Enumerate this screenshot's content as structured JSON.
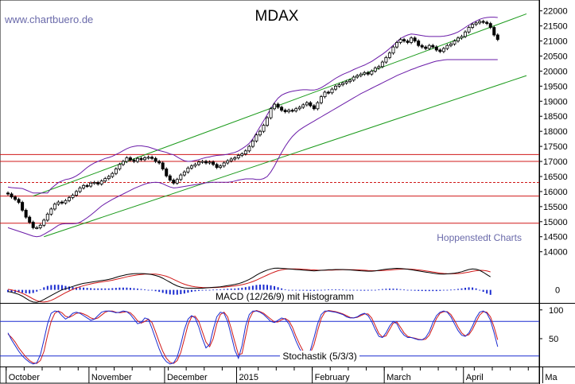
{
  "source": "www.chartbuero.de",
  "credit": "Hoppenstedt Charts",
  "colors": {
    "price": "#000000",
    "upper_band": "#6a1ba8",
    "lower_band": "#6a1ba8",
    "trend": "#1a9a1a",
    "support": "#d01818",
    "macd": "#000000",
    "signal": "#d01818",
    "histogram": "#1a2bd0",
    "stoch_fast": "#1a2bd0",
    "stoch_slow": "#d01818",
    "stoch_level": "#1a2bd0"
  },
  "chart_data": [
    {
      "type": "candlestick",
      "title": "MDAX",
      "y_ticks": [
        14000,
        14500,
        15000,
        15500,
        16000,
        16500,
        17000,
        17500,
        18000,
        18500,
        19000,
        19500,
        20000,
        20500,
        21000,
        21500,
        22000
      ],
      "ylim": [
        13780,
        22150
      ],
      "months": [
        "October",
        "November",
        "December",
        "2015",
        "February",
        "March",
        "April",
        "Ma"
      ],
      "month_starts": [
        0,
        23,
        44,
        64,
        85,
        105,
        127,
        149
      ],
      "support_levels": [
        {
          "value": 17230,
          "style": "solid"
        },
        {
          "value": 17000,
          "style": "solid"
        },
        {
          "value": 16300,
          "style": "dashed"
        },
        {
          "value": 15850,
          "style": "solid"
        },
        {
          "value": 14950,
          "style": "solid"
        }
      ],
      "trend_lines": [
        {
          "from": [
            7,
            15850
          ],
          "to": [
            144,
            21900
          ]
        },
        {
          "from": [
            10,
            14500
          ],
          "to": [
            144,
            19850
          ]
        }
      ],
      "closes": [
        15920,
        15820,
        15740,
        15640,
        15380,
        15150,
        14980,
        14800,
        14800,
        14880,
        15050,
        15250,
        15420,
        15580,
        15650,
        15620,
        15700,
        15800,
        15880,
        16000,
        16120,
        16200,
        16180,
        16280,
        16300,
        16250,
        16350,
        16430,
        16500,
        16600,
        16750,
        16900,
        17000,
        17120,
        17050,
        17000,
        17100,
        17060,
        17120,
        17140,
        17100,
        17000,
        16950,
        16750,
        16520,
        16380,
        16280,
        16400,
        16550,
        16650,
        16780,
        16850,
        16900,
        16980,
        17000,
        16950,
        16980,
        16900,
        16800,
        16850,
        16950,
        17020,
        17080,
        17120,
        17200,
        17250,
        17350,
        17500,
        17680,
        17880,
        18000,
        18200,
        18450,
        18750,
        18900,
        18800,
        18700,
        18650,
        18700,
        18680,
        18750,
        18800,
        18880,
        18950,
        18850,
        18750,
        18950,
        19150,
        19300,
        19280,
        19400,
        19500,
        19550,
        19600,
        19650,
        19700,
        19800,
        19850,
        19900,
        19950,
        19900,
        20000,
        20100,
        20150,
        20300,
        20450,
        20600,
        20800,
        20950,
        21050,
        21000,
        20950,
        21100,
        21000,
        20850,
        20800,
        20750,
        20850,
        20800,
        20700,
        20650,
        20750,
        20850,
        20900,
        21000,
        21100,
        21150,
        21300,
        21450,
        21550,
        21600,
        21650,
        21620,
        21580,
        21450,
        21200,
        21050
      ],
      "upper_band": [
        16150,
        16130,
        16120,
        16110,
        16100,
        16050,
        16000,
        15950,
        15950,
        15950,
        15950,
        15950,
        16100,
        16200,
        16300,
        16350,
        16400,
        16420,
        16460,
        16520,
        16600,
        16700,
        16800,
        16880,
        16950,
        17000,
        17050,
        17100,
        17130,
        17170,
        17230,
        17290,
        17360,
        17420,
        17470,
        17500,
        17520,
        17520,
        17500,
        17480,
        17440,
        17400,
        17360,
        17330,
        17300,
        17250,
        17220,
        17150,
        17080,
        17020,
        17000,
        17010,
        17030,
        17060,
        17100,
        17130,
        17150,
        17180,
        17200,
        17210,
        17220,
        17240,
        17270,
        17300,
        17350,
        17420,
        17500,
        17600,
        17750,
        17950,
        18150,
        18350,
        18550,
        18750,
        18950,
        19100,
        19200,
        19260,
        19300,
        19330,
        19350,
        19370,
        19380,
        19380,
        19370,
        19370,
        19400,
        19450,
        19520,
        19600,
        19680,
        19760,
        19830,
        19890,
        19940,
        19990,
        20050,
        20100,
        20150,
        20200,
        20260,
        20320,
        20400,
        20480,
        20560,
        20650,
        20750,
        20860,
        20970,
        21080,
        21150,
        21200,
        21230,
        21220,
        21200,
        21180,
        21160,
        21150,
        21150,
        21150,
        21150,
        21160,
        21180,
        21210,
        21250,
        21300,
        21370,
        21450,
        21530,
        21600,
        21660,
        21720,
        21760,
        21780,
        21790,
        21790,
        21780
      ],
      "lower_band": [
        14800,
        14760,
        14720,
        14680,
        14640,
        14600,
        14560,
        14520,
        14500,
        14520,
        14580,
        14650,
        14720,
        14800,
        14880,
        14920,
        14930,
        14930,
        14930,
        14940,
        14980,
        15050,
        15130,
        15220,
        15320,
        15420,
        15520,
        15600,
        15670,
        15740,
        15800,
        15860,
        15920,
        15980,
        16040,
        16100,
        16150,
        16200,
        16250,
        16280,
        16300,
        16310,
        16300,
        16260,
        16200,
        16150,
        16120,
        16130,
        16150,
        16170,
        16190,
        16210,
        16230,
        16250,
        16270,
        16290,
        16300,
        16310,
        16310,
        16310,
        16310,
        16310,
        16320,
        16350,
        16380,
        16400,
        16420,
        16420,
        16420,
        16400,
        16400,
        16430,
        16500,
        16650,
        16850,
        17080,
        17300,
        17500,
        17680,
        17830,
        17950,
        18050,
        18130,
        18200,
        18270,
        18340,
        18410,
        18480,
        18550,
        18620,
        18690,
        18760,
        18830,
        18900,
        18970,
        19040,
        19110,
        19180,
        19250,
        19310,
        19370,
        19430,
        19490,
        19550,
        19610,
        19670,
        19730,
        19790,
        19850,
        19900,
        19950,
        20000,
        20050,
        20090,
        20140,
        20180,
        20220,
        20260,
        20300,
        20330,
        20350,
        20370,
        20380,
        20380,
        20380,
        20380,
        20380,
        20380,
        20380,
        20380,
        20380,
        20380,
        20380,
        20380,
        20380,
        20380,
        20380
      ]
    },
    {
      "type": "line",
      "title": "MACD (12/26/9) mit Histogramm",
      "y_ticks": [
        0
      ],
      "ylim": [
        -460,
        1000
      ],
      "macd": [
        -60,
        -80,
        -120,
        -160,
        -220,
        -300,
        -380,
        -430,
        -440,
        -400,
        -340,
        -270,
        -200,
        -130,
        -60,
        0,
        40,
        80,
        120,
        160,
        200,
        230,
        250,
        270,
        290,
        310,
        330,
        350,
        370,
        400,
        440,
        480,
        510,
        540,
        560,
        570,
        575,
        575,
        570,
        560,
        540,
        510,
        470,
        410,
        340,
        270,
        200,
        140,
        100,
        70,
        60,
        60,
        60,
        60,
        60,
        70,
        80,
        90,
        100,
        110,
        130,
        150,
        170,
        190,
        220,
        260,
        310,
        370,
        440,
        520,
        590,
        650,
        700,
        740,
        765,
        770,
        760,
        750,
        740,
        730,
        720,
        710,
        700,
        690,
        680,
        670,
        680,
        690,
        700,
        710,
        715,
        720,
        720,
        720,
        715,
        705,
        695,
        685,
        675,
        665,
        660,
        660,
        670,
        690,
        710,
        730,
        745,
        755,
        760,
        755,
        745,
        730,
        710,
        690,
        670,
        650,
        630,
        610,
        590,
        570,
        560,
        560,
        565,
        575,
        590,
        610,
        640,
        680,
        720,
        740,
        730,
        690,
        620,
        540,
        460
      ],
      "signal": [
        20,
        0,
        -30,
        -70,
        -120,
        -180,
        -250,
        -320,
        -380,
        -420,
        -430,
        -410,
        -370,
        -310,
        -240,
        -170,
        -100,
        -40,
        20,
        70,
        110,
        150,
        180,
        210,
        240,
        260,
        280,
        300,
        320,
        340,
        370,
        400,
        430,
        460,
        490,
        510,
        530,
        545,
        555,
        560,
        560,
        555,
        540,
        515,
        480,
        430,
        370,
        310,
        250,
        200,
        160,
        130,
        110,
        95,
        85,
        80,
        80,
        82,
        86,
        92,
        100,
        112,
        126,
        142,
        160,
        184,
        214,
        250,
        294,
        346,
        404,
        464,
        524,
        582,
        632,
        676,
        708,
        730,
        740,
        742,
        740,
        735,
        728,
        720,
        712,
        704,
        698,
        695,
        695,
        697,
        700,
        704,
        708,
        711,
        713,
        713,
        712,
        708,
        702,
        694,
        686,
        680,
        676,
        677,
        682,
        690,
        700,
        712,
        722,
        730,
        735,
        735,
        730,
        720,
        706,
        690,
        672,
        652,
        632,
        612,
        594,
        580,
        571,
        568,
        570,
        576,
        588,
        606,
        630,
        656,
        678,
        690,
        688,
        670,
        635
      ],
      "histogram": [
        -80,
        -80,
        -90,
        -90,
        -100,
        -120,
        -130,
        -110,
        -60,
        20,
        90,
        140,
        170,
        180,
        180,
        170,
        140,
        120,
        100,
        90,
        90,
        80,
        70,
        60,
        50,
        50,
        50,
        50,
        50,
        60,
        70,
        80,
        80,
        80,
        70,
        60,
        45,
        30,
        15,
        0,
        -20,
        -45,
        -70,
        -105,
        -140,
        -160,
        -170,
        -170,
        -150,
        -130,
        -100,
        -70,
        -50,
        -35,
        -25,
        -10,
        0,
        8,
        14,
        18,
        30,
        38,
        44,
        48,
        60,
        76,
        96,
        120,
        146,
        174,
        186,
        186,
        176,
        158,
        133,
        94,
        52,
        20,
        0,
        -12,
        -20,
        -25,
        -28,
        -30,
        -32,
        -34,
        -18,
        -5,
        5,
        13,
        15,
        16,
        12,
        9,
        2,
        -8,
        -17,
        -23,
        -27,
        -29,
        -26,
        -20,
        -6,
        13,
        28,
        40,
        45,
        43,
        38,
        25,
        10,
        -5,
        -20,
        -30,
        -36,
        -40,
        -42,
        -42,
        -42,
        -42,
        -34,
        -20,
        -6,
        7,
        20,
        34,
        52,
        74,
        90,
        84,
        52,
        0,
        -68,
        -130,
        -175
      ]
    },
    {
      "type": "line",
      "title": "Stochastik (5/3/3)",
      "y_ticks": [
        50,
        100
      ],
      "ylim": [
        3,
        108
      ],
      "levels": [
        80,
        20
      ],
      "fast": [
        60,
        48,
        38,
        28,
        20,
        14,
        9,
        6,
        8,
        22,
        48,
        76,
        94,
        98,
        97,
        90,
        84,
        88,
        94,
        96,
        94,
        90,
        86,
        82,
        84,
        90,
        96,
        98,
        98,
        97,
        95,
        96,
        98,
        97,
        92,
        84,
        76,
        78,
        86,
        84,
        68,
        50,
        32,
        18,
        10,
        6,
        8,
        18,
        40,
        66,
        84,
        90,
        86,
        70,
        50,
        34,
        40,
        66,
        88,
        96,
        94,
        80,
        56,
        30,
        16,
        38,
        72,
        92,
        98,
        98,
        96,
        92,
        86,
        80,
        78,
        82,
        86,
        84,
        76,
        62,
        46,
        32,
        24,
        22,
        30,
        52,
        76,
        92,
        98,
        98,
        97,
        96,
        94,
        92,
        88,
        86,
        86,
        88,
        92,
        94,
        90,
        80,
        66,
        54,
        52,
        60,
        72,
        80,
        76,
        64,
        56,
        52,
        52,
        50,
        48,
        48,
        52,
        62,
        78,
        90,
        96,
        98,
        96,
        88,
        76,
        64,
        56,
        54,
        60,
        72,
        86,
        96,
        98,
        94,
        82,
        60,
        36
      ],
      "slow": [
        58,
        52,
        44,
        34,
        26,
        18,
        12,
        8,
        7,
        12,
        28,
        56,
        80,
        94,
        98,
        95,
        89,
        87,
        90,
        94,
        95,
        93,
        90,
        86,
        84,
        86,
        91,
        96,
        98,
        98,
        96,
        95,
        96,
        97,
        95,
        89,
        81,
        77,
        80,
        84,
        78,
        62,
        44,
        28,
        16,
        9,
        7,
        12,
        26,
        50,
        74,
        88,
        89,
        80,
        62,
        44,
        36,
        50,
        76,
        92,
        96,
        88,
        68,
        44,
        22,
        24,
        54,
        84,
        96,
        99,
        97,
        94,
        89,
        84,
        79,
        79,
        83,
        85,
        81,
        70,
        54,
        40,
        28,
        23,
        25,
        40,
        64,
        85,
        96,
        99,
        98,
        97,
        95,
        93,
        90,
        87,
        86,
        87,
        90,
        93,
        93,
        86,
        73,
        59,
        53,
        55,
        66,
        77,
        79,
        70,
        60,
        54,
        52,
        51,
        49,
        48,
        49,
        56,
        70,
        85,
        94,
        97,
        97,
        92,
        82,
        70,
        60,
        55,
        57,
        66,
        79,
        91,
        97,
        96,
        88,
        70,
        48
      ]
    }
  ]
}
